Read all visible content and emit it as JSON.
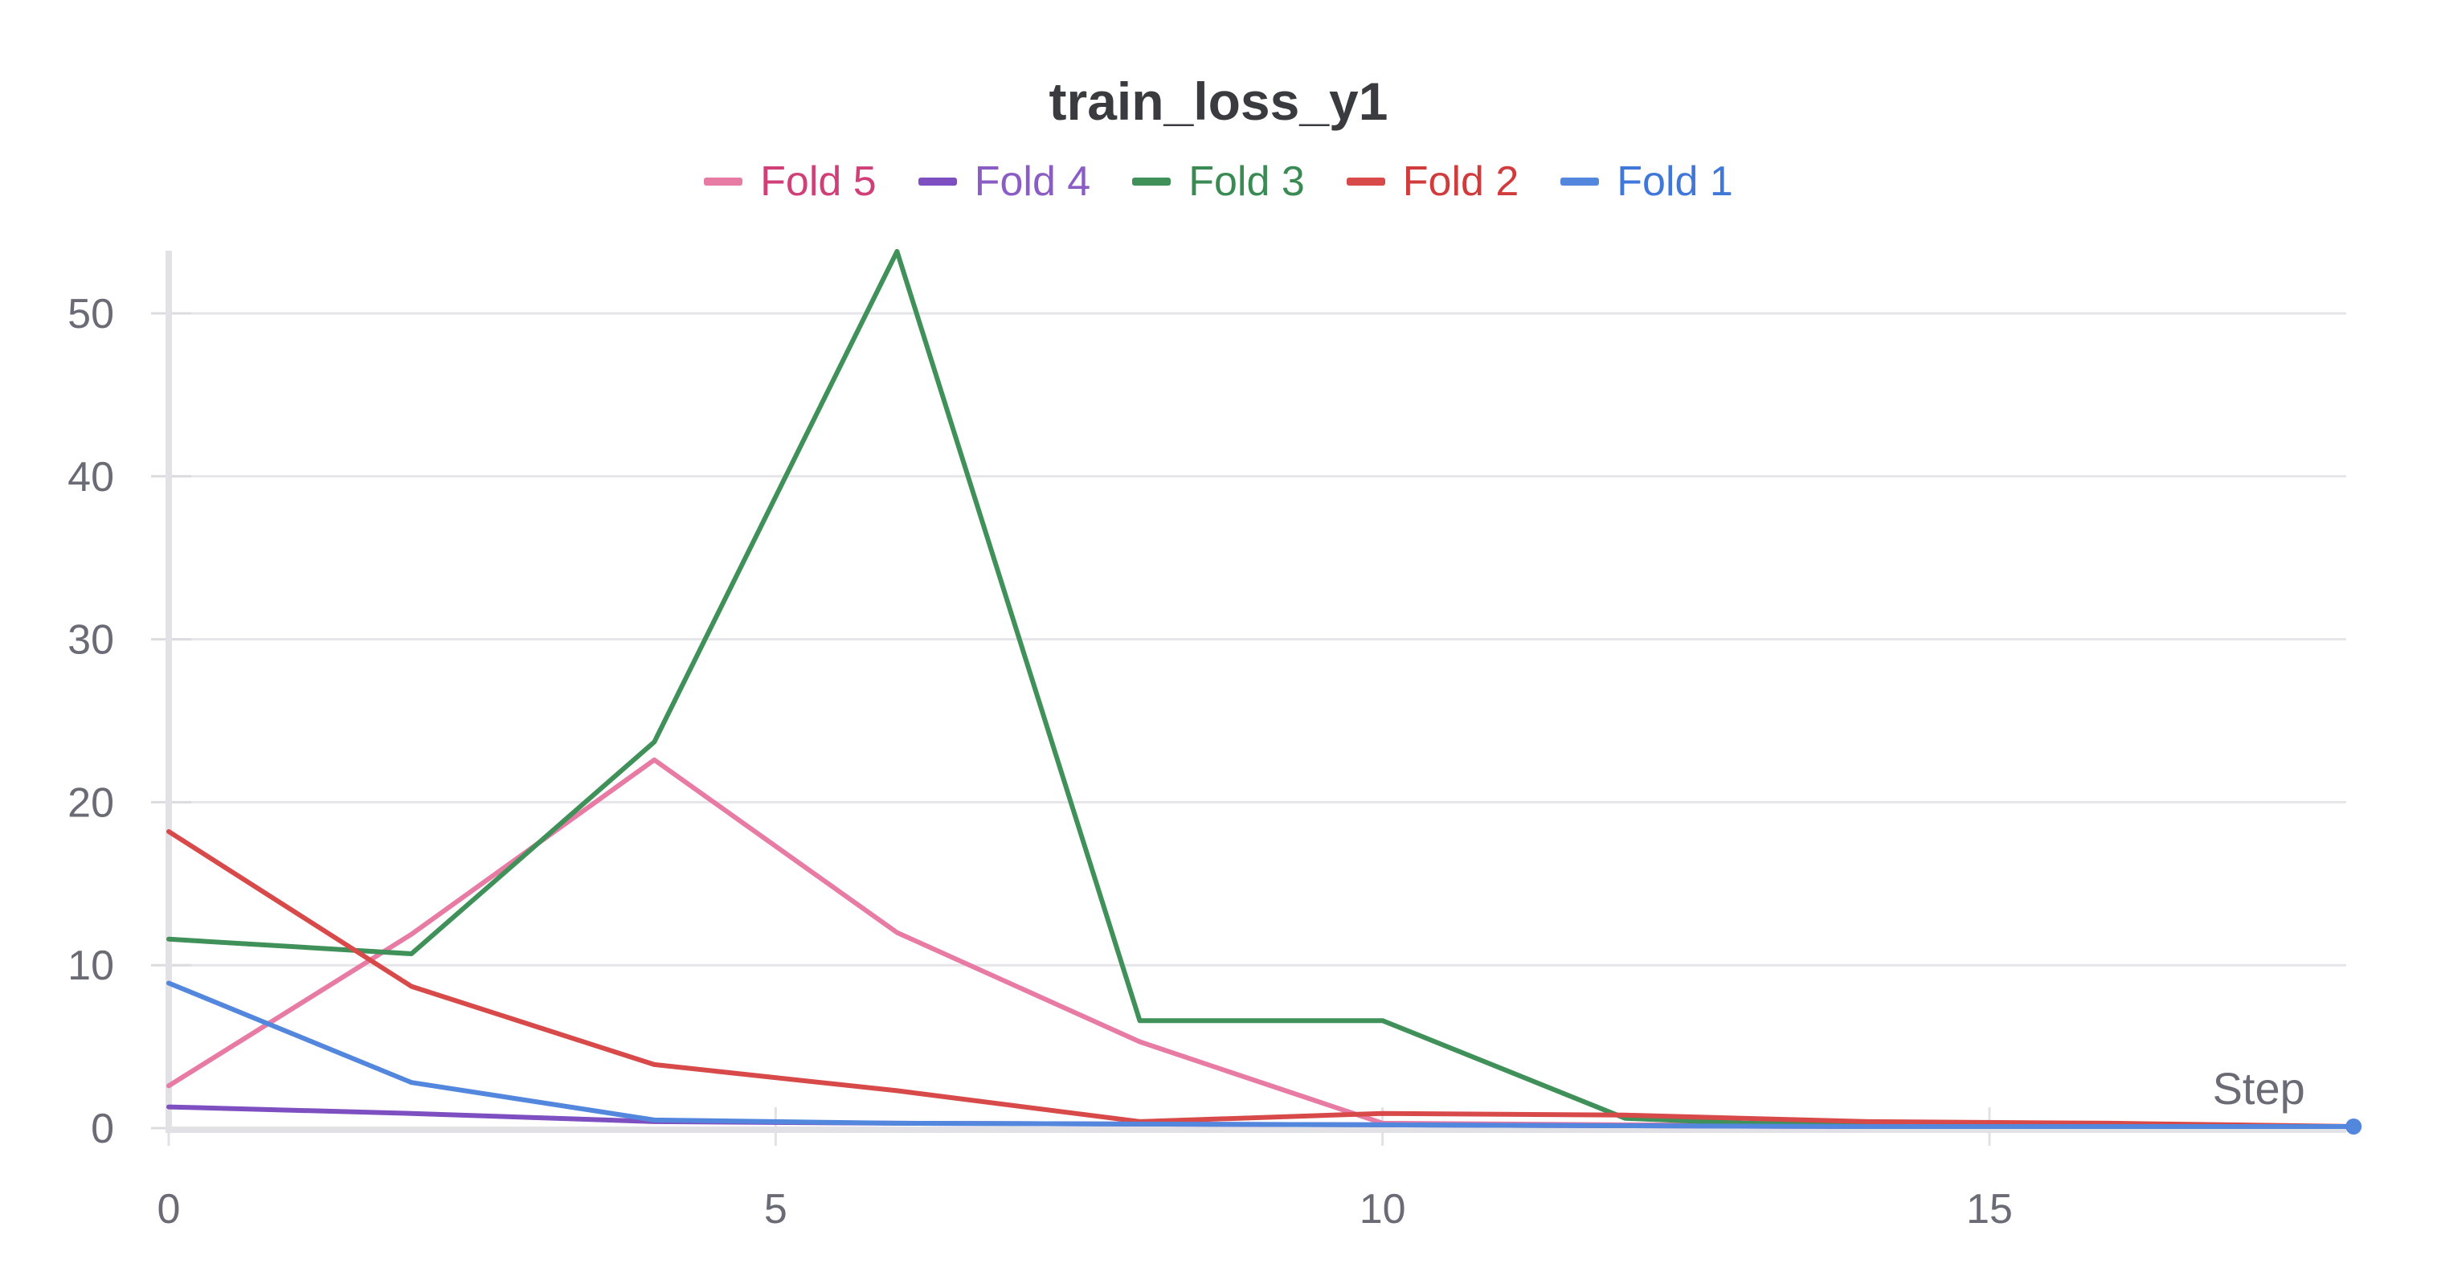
{
  "chart_data": {
    "type": "line",
    "title": "train_loss_y1",
    "xlabel": "Step",
    "ylabel": "",
    "xlim": [
      0,
      18
    ],
    "ylim": [
      0,
      54
    ],
    "x_ticks": [
      0,
      5,
      10,
      15
    ],
    "y_ticks": [
      0,
      10,
      20,
      30,
      40,
      50
    ],
    "grid": true,
    "legend_position": "top-center",
    "legend": [
      {
        "name": "Fold 5",
        "color": "#e87ba4",
        "text_color": "#d13f78"
      },
      {
        "name": "Fold 4",
        "color": "#7e4fc0",
        "text_color": "#8a5cc4"
      },
      {
        "name": "Fold 3",
        "color": "#3f9159",
        "text_color": "#3a8b53"
      },
      {
        "name": "Fold 2",
        "color": "#d84a4a",
        "text_color": "#d03b3b"
      },
      {
        "name": "Fold 1",
        "color": "#5387dd",
        "text_color": "#3f78d8"
      }
    ],
    "series": [
      {
        "name": "Fold 5",
        "color": "#e87ba4",
        "x": [
          0,
          2,
          4,
          6,
          8,
          10,
          12,
          14,
          16,
          18
        ],
        "y": [
          2.6,
          11.9,
          22.6,
          12.0,
          5.3,
          0.3,
          0.2,
          0.15,
          0.1,
          0.1
        ]
      },
      {
        "name": "Fold 4",
        "color": "#7e4fc0",
        "x": [
          0,
          2,
          4,
          6,
          8,
          10,
          12,
          14,
          16,
          18
        ],
        "y": [
          1.3,
          0.9,
          0.4,
          0.3,
          0.25,
          0.2,
          0.15,
          0.1,
          0.1,
          0.1
        ]
      },
      {
        "name": "Fold 3",
        "color": "#3f9159",
        "x": [
          0,
          2,
          4,
          6,
          8,
          10,
          12,
          13,
          14,
          16,
          18
        ],
        "y": [
          11.6,
          10.7,
          23.7,
          53.8,
          6.6,
          6.6,
          0.6,
          0.3,
          0.2,
          0.15,
          0.1
        ]
      },
      {
        "name": "Fold 2",
        "color": "#d84a4a",
        "x": [
          0,
          2,
          4,
          6,
          8,
          10,
          12,
          14,
          16,
          18
        ],
        "y": [
          18.2,
          8.7,
          3.9,
          2.3,
          0.4,
          0.9,
          0.8,
          0.4,
          0.3,
          0.1
        ]
      },
      {
        "name": "Fold 1",
        "color": "#5387dd",
        "x": [
          0,
          2,
          4,
          6,
          8,
          10,
          12,
          14,
          16,
          18
        ],
        "y": [
          8.9,
          2.8,
          0.5,
          0.3,
          0.25,
          0.2,
          0.15,
          0.1,
          0.1,
          0.1
        ]
      }
    ]
  }
}
